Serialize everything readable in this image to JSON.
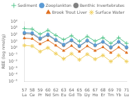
{
  "chart_data": {
    "type": "line",
    "categories": [
      "57\nLa",
      "58\nCe",
      "59\nPr",
      "60\nNd",
      "62\nSm",
      "63\nEu",
      "64\nGd",
      "65\nTb",
      "66\nDy",
      "67\nHo",
      "68\nEr",
      "69\nTm",
      "70\nYb",
      "71\nLu"
    ],
    "series": [
      {
        "name": "Sediment",
        "color": "#52c48a",
        "marker": "plus",
        "values": [
          800,
          700,
          120,
          450,
          80,
          18,
          70,
          10,
          55,
          11,
          35,
          5,
          35,
          5
        ]
      },
      {
        "name": "Zooplankton",
        "color": "#5b9bd5",
        "marker": "circle",
        "values": [
          200,
          180,
          30,
          110,
          18,
          3.5,
          16,
          2.2,
          14,
          2.8,
          9,
          1.4,
          9,
          1.4
        ]
      },
      {
        "name": "Benthic Invertebrates",
        "color": "#808080",
        "marker": "circle",
        "values": [
          150,
          130,
          22,
          80,
          14,
          2.5,
          13,
          1.8,
          12,
          2.4,
          8,
          1.1,
          8,
          1.1
        ]
      },
      {
        "name": "Brook Trout Liver",
        "color": "#e07020",
        "marker": "triangle",
        "values": [
          30,
          25,
          4,
          15,
          2.5,
          0.4,
          2.2,
          0.3,
          2.0,
          0.4,
          1.4,
          0.2,
          1.3,
          0.2
        ]
      },
      {
        "name": "Surface Water",
        "color": "#f0d060",
        "marker": "star",
        "values": [
          2.5,
          2.0,
          0.3,
          1.1,
          0.15,
          0.025,
          0.14,
          0.018,
          0.12,
          0.022,
          0.08,
          0.01,
          0.08,
          0.01
        ]
      }
    ],
    "ylabel": "REE (log nmol/g)",
    "log": "y",
    "ylim": [
      1e-05,
      10000.0
    ],
    "yticks": [
      {
        "value": 1e-05,
        "label": "10⁻⁵"
      },
      {
        "value": 0.0001,
        "label": "10⁻⁴"
      },
      {
        "value": 0.001,
        "label": "10⁻³"
      },
      {
        "value": 0.01,
        "label": "10⁻²"
      },
      {
        "value": 0.1,
        "label": "10⁻¹"
      },
      {
        "value": 1,
        "label": "10⁰"
      },
      {
        "value": 10,
        "label": "10¹"
      },
      {
        "value": 100,
        "label": "10²"
      },
      {
        "value": 1000,
        "label": "10³"
      },
      {
        "value": 10000,
        "label": "10⁴"
      }
    ],
    "grid": false,
    "legend": "upper right"
  }
}
